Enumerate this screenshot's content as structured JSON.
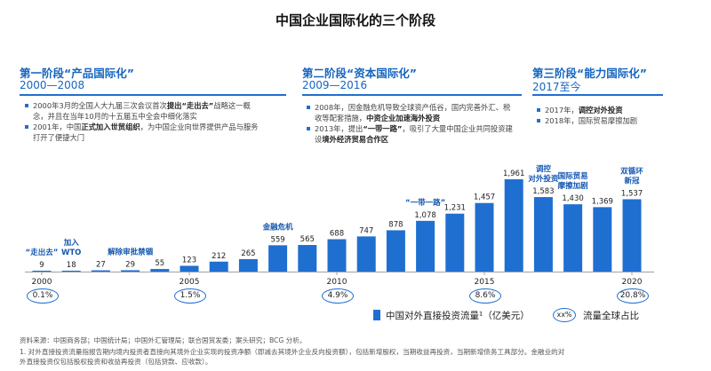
{
  "title": "中国企业国际化的三个阶段",
  "phases": [
    {
      "title": "第一阶段“产品国际化”",
      "years": "2000—2008",
      "bullets": [
        {
          "pre": "2000年3月的全国人大九届三次会议首次",
          "bold": "提出“走出去”",
          "post": "战略这一概念，并且在当年10月的十五届五中全会中细化落实"
        },
        {
          "pre": "2001年，中国",
          "bold": "正式加入世贸组织",
          "post": "，为中国企业向世界提供产品与服务打开了便捷大门"
        }
      ]
    },
    {
      "title": "第二阶段“资本国际化”",
      "years": "2009—2016",
      "bullets": [
        {
          "pre": "2008年，因金融危机导致全球资产低谷，国内完善外汇、税收等配套措施，",
          "bold": "中资企业加速海外投资",
          "post": ""
        },
        {
          "pre": "2013年，提出",
          "bold": "“一带一路”",
          "post": "，吸引了大量中国企业共同投资建设",
          "bold2": "境外经济贸易合作区"
        }
      ]
    },
    {
      "title": "第三阶段“能力国际化”",
      "years": "2017至今",
      "bullets": [
        {
          "pre": "2017年，",
          "bold": "调控对外投资",
          "post": ""
        },
        {
          "pre": "2018年，国际贸易摩擦加剧",
          "bold": "",
          "post": ""
        }
      ]
    }
  ],
  "chart_data": {
    "type": "bar",
    "x": [
      2000,
      2001,
      2002,
      2003,
      2004,
      2005,
      2006,
      2007,
      2008,
      2009,
      2010,
      2011,
      2012,
      2013,
      2014,
      2015,
      2016,
      2017,
      2018,
      2019,
      2020
    ],
    "values": [
      9,
      18,
      27,
      29,
      55,
      123,
      212,
      265,
      559,
      565,
      688,
      747,
      878,
      1078,
      1231,
      1457,
      1961,
      1583,
      1430,
      1369,
      1537
    ],
    "value_labels": [
      "9",
      "18",
      "27",
      "29",
      "55",
      "123",
      "212",
      "265",
      "559",
      "565",
      "688",
      "747",
      "878",
      "1,078",
      "1,231",
      "1,457",
      "1,961",
      "1,583",
      "1,430",
      "1,369",
      "1,537"
    ],
    "x_tick_labels": [
      {
        "year": 2000,
        "label": "2000"
      },
      {
        "year": 2005,
        "label": "2005"
      },
      {
        "year": 2010,
        "label": "2010"
      },
      {
        "year": 2015,
        "label": "2015"
      },
      {
        "year": 2020,
        "label": "2020"
      }
    ],
    "global_share": [
      {
        "year": 2000,
        "label": "0.1%"
      },
      {
        "year": 2005,
        "label": "1.5%"
      },
      {
        "year": 2010,
        "label": "4.9%"
      },
      {
        "year": 2015,
        "label": "8.6%"
      },
      {
        "year": 2020,
        "label": "20.8%"
      }
    ],
    "annotations": [
      {
        "year": 2000,
        "lines": [
          "“走出去”"
        ]
      },
      {
        "year": 2001,
        "lines": [
          "加入",
          "WTO"
        ]
      },
      {
        "year": 2003,
        "lines": [
          "解除审批禁锢"
        ]
      },
      {
        "year": 2008,
        "lines": [
          "金融危机"
        ]
      },
      {
        "year": 2013,
        "lines": [
          "“一带一路”"
        ]
      },
      {
        "year": 2017,
        "lines": [
          "调控",
          "对外投资"
        ]
      },
      {
        "year": 2018,
        "lines": [
          "国际贸易",
          "摩擦加剧"
        ]
      },
      {
        "year": 2020,
        "lines": [
          "双循环",
          "新冠"
        ]
      }
    ],
    "bar_color": "#1f6fd1",
    "legend": {
      "bar": "中国对外直接投资流量¹（亿美元）",
      "oval_sample": "xx%",
      "oval": "流量全球占比"
    }
  },
  "footnotes": [
    "资料来源：中国商务部；中国统计局；中国外汇管理局；联合国贸发委；案头研究；BCG 分析。",
    "1. 对外直接投资流量指报告期内境内投资者直接向其境外企业实现的投资净额（即减去其境外企业反向投资额），包括新增股权，当期收益再投资，当期新增债务工具部分。金融业的对",
    "外直接投资仅包括股权投资和收益再投资（包括贷款、应收款）。"
  ]
}
